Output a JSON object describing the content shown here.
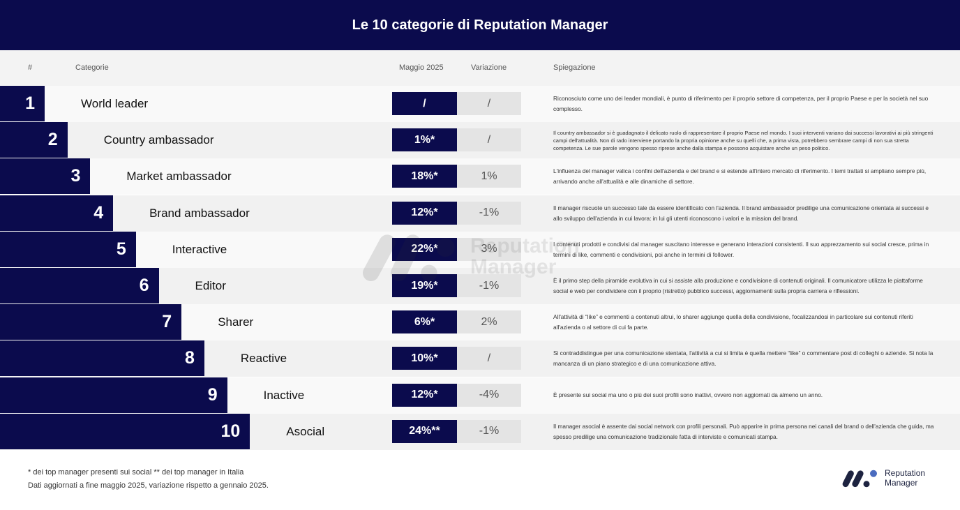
{
  "title": "Le 10 categorie di Reputation Manager",
  "columns": {
    "num": "#",
    "category": "Categorie",
    "may": "Maggio 2025",
    "var": "Variazione",
    "exp": "Spiegazione"
  },
  "rows": [
    {
      "n": "1",
      "category": "World leader",
      "may": "/",
      "var": "/",
      "exp": "Riconosciuto come uno dei leader mondiali, è punto di riferimento per il proprio settore di competenza, per il proprio Paese e per la società nel suo complesso."
    },
    {
      "n": "2",
      "category": "Country ambassador",
      "may": "1%*",
      "var": "/",
      "exp": "Il country ambassador si è guadagnato il delicato ruolo di rappresentare il proprio Paese nel mondo. I suoi interventi variano dai successi lavorativi ai più stringenti campi dell'attualità. Non di rado interviene portando la propria opinione anche su quelli che, a prima vista, potrebbero sembrare campi di non sua stretta competenza. Le sue parole vengono spesso riprese anche dalla stampa e possono acquistare anche un peso politico."
    },
    {
      "n": "3",
      "category": "Market ambassador",
      "may": "18%*",
      "var": "1%",
      "exp": "L'influenza del manager valica i confini dell'azienda e del brand e si estende all'intero mercato di riferimento. I temi trattati si ampliano sempre più, arrivando anche all'attualità e alle dinamiche di settore."
    },
    {
      "n": "4",
      "category": "Brand ambassador",
      "may": "12%*",
      "var": "-1%",
      "exp": "Il manager riscuote un successo tale da essere identificato con l'azienda. Il brand ambassador predilige una comunicazione orientata ai successi e allo sviluppo dell'azienda in cui lavora: in lui gli utenti riconoscono i valori e la mission del brand."
    },
    {
      "n": "5",
      "category": "Interactive",
      "may": "22%*",
      "var": "3%",
      "exp": "I contenuti prodotti e condivisi dal manager suscitano interesse e generano interazioni consistenti. Il suo apprezzamento sui social cresce, prima in termini di like, commenti e condivisioni, poi anche in termini di follower."
    },
    {
      "n": "6",
      "category": "Editor",
      "may": "19%*",
      "var": "-1%",
      "exp": "È il primo step della piramide evolutiva in cui si assiste alla produzione e condivisione di contenuti originali. Il comunicatore utilizza le piattaforme social e web per condividere con il proprio (ristretto) pubblico successi, aggiornamenti sulla propria carriera e riflessioni."
    },
    {
      "n": "7",
      "category": "Sharer",
      "may": "6%*",
      "var": "2%",
      "exp": "All'attività di “like” e commenti a contenuti altrui, lo sharer aggiunge quella della condivisione, focalizzandosi in particolare sui contenuti riferiti all'azienda o al settore di cui fa parte."
    },
    {
      "n": "8",
      "category": "Reactive",
      "may": "10%*",
      "var": "/",
      "exp": "Si contraddistingue per una comunicazione stentata, l'attività a cui si limita è quella mettere “like” o commentare post di colleghi o aziende. Si nota la mancanza di un piano strategico e di una comunicazione attiva."
    },
    {
      "n": "9",
      "category": "Inactive",
      "may": "12%*",
      "var": "-4%",
      "exp": "È presente sui social ma uno o più dei suoi profili sono inattivi, ovvero non aggiornati da almeno un anno."
    },
    {
      "n": "10",
      "category": "Asocial",
      "may": "24%**",
      "var": "-1%",
      "exp": "Il manager asocial è assente dai social network con profili personali. Può apparire in prima persona nei canali del brand o dell'azienda che guida, ma spesso predilige una comunicazione tradizionale fatta di interviste e comunicati stampa."
    }
  ],
  "footer": {
    "note1": "* dei top manager presenti sui social  ** dei top manager in Italia",
    "note2": "Dati aggiornati a fine maggio 2025, variazione rispetto a gennaio 2025."
  },
  "logo": {
    "line1": "Reputation",
    "line2": "Manager"
  },
  "colors": {
    "navy": "#0b0b4d",
    "accent": "#4a6bbf",
    "gray": "#e4e4e4"
  }
}
